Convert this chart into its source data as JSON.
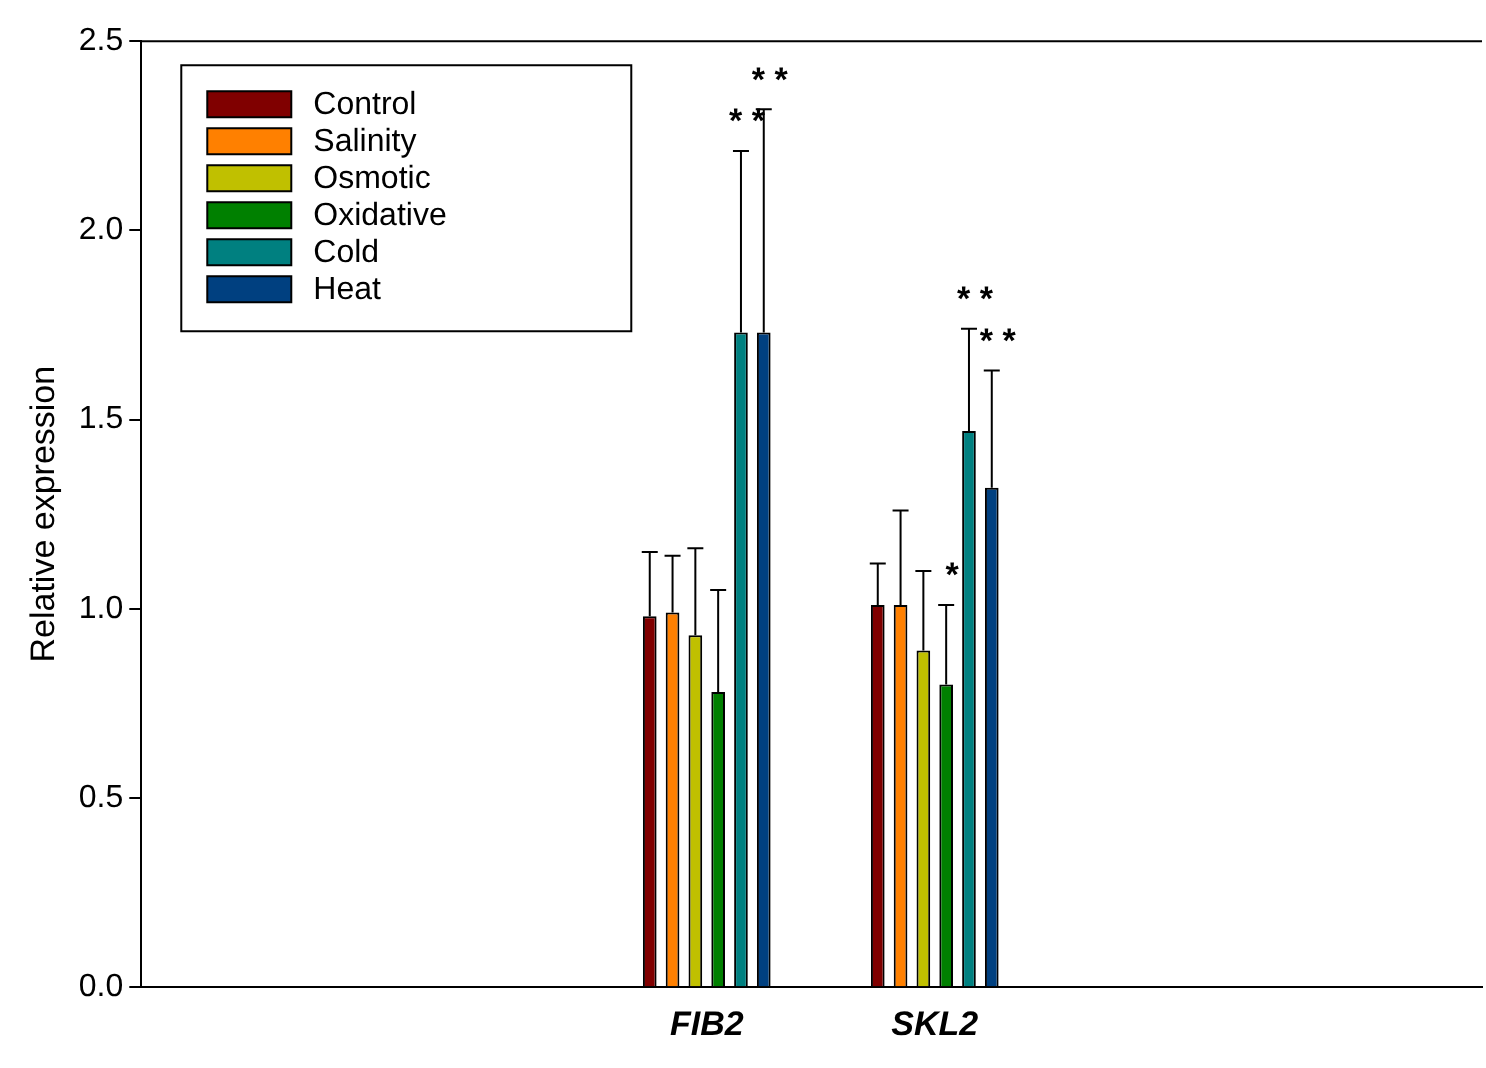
{
  "chart_data": {
    "type": "bar",
    "ylabel": "Relative expression",
    "categories": [
      "FIB2",
      "SKL2"
    ],
    "series": [
      {
        "name": "Control",
        "color": "#800000",
        "values": [
          0.98,
          1.01
        ],
        "errors": [
          [
            0.98,
            1.15
          ],
          [
            1.01,
            1.12
          ]
        ]
      },
      {
        "name": "Salinity",
        "color": "#ff8000",
        "values": [
          0.99,
          1.01
        ],
        "errors": [
          [
            0.99,
            1.14
          ],
          [
            1.01,
            1.26
          ]
        ]
      },
      {
        "name": "Osmotic",
        "color": "#c0c000",
        "values": [
          0.93,
          0.89
        ],
        "errors": [
          [
            0.93,
            1.16
          ],
          [
            0.89,
            1.1
          ]
        ]
      },
      {
        "name": "Oxidative",
        "color": "#008000",
        "values": [
          0.78,
          0.8
        ],
        "errors": [
          [
            0.78,
            1.05
          ],
          [
            0.8,
            1.01
          ]
        ]
      },
      {
        "name": "Cold",
        "color": "#008080",
        "values": [
          1.73,
          1.47
        ],
        "errors": [
          [
            1.73,
            2.21
          ],
          [
            1.47,
            1.74
          ]
        ]
      },
      {
        "name": "Heat",
        "color": "#004080",
        "values": [
          1.73,
          1.32
        ],
        "errors": [
          [
            1.73,
            2.32
          ],
          [
            1.32,
            1.63
          ]
        ]
      }
    ],
    "ylim": [
      0,
      2.5
    ],
    "yticks": [
      {
        "value": 0,
        "label": "0.0"
      },
      {
        "value": 0.5,
        "label": "0.5"
      },
      {
        "value": 1,
        "label": "1.0"
      },
      {
        "value": 1.5,
        "label": "1.5"
      },
      {
        "value": 2,
        "label": "2.0"
      },
      {
        "value": 2.5,
        "label": "2.5"
      }
    ],
    "grid": false,
    "legend": "top left",
    "annotations": [
      "* *",
      "* *",
      "* *",
      "* *",
      "*"
    ]
  }
}
